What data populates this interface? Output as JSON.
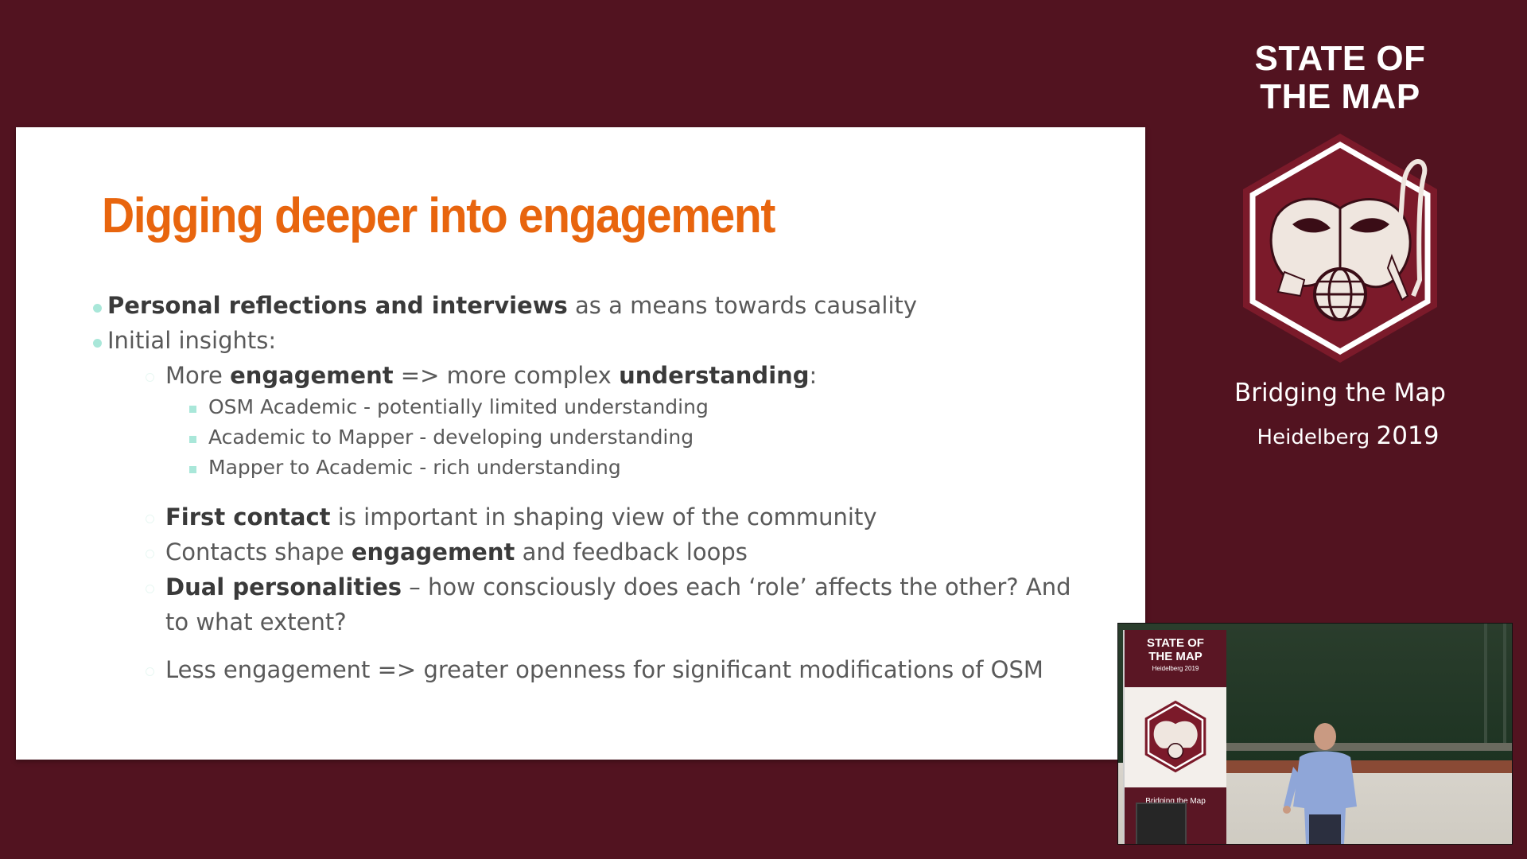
{
  "slide": {
    "title": "Digging deeper into engagement",
    "lines": [
      {
        "level": 1,
        "bold": "Personal reflections and interviews",
        "text": " as a means towards causality"
      },
      {
        "level": 1,
        "text": "Initial insights:"
      },
      {
        "level": 2,
        "pre": "More ",
        "b1": "engagement",
        "mid": " => more complex ",
        "b2": "understanding",
        "post": ":"
      },
      {
        "level": 3,
        "text": "OSM Academic - potentially limited understanding"
      },
      {
        "level": 3,
        "text": "Academic to Mapper - developing understanding"
      },
      {
        "level": 3,
        "text": "Mapper to Academic - rich understanding"
      },
      {
        "level": 2,
        "bold": "First contact",
        "text": " is important in shaping view of the community"
      },
      {
        "level": 2,
        "pre": "Contacts shape ",
        "bold": "engagement",
        "post": " and feedback loops"
      },
      {
        "level": 2,
        "bold": "Dual personalities",
        "text": " – how consciously does each ‘role’ affects the other? And",
        "cont": "to what extent?"
      },
      {
        "level": 2,
        "text": "Less engagement => greater openness for significant modifications of OSM"
      }
    ]
  },
  "brand": {
    "title_line1": "STATE OF",
    "title_line2": "THE MAP",
    "subtitle": "Bridging the Map",
    "place": "Heidelberg",
    "year": "2019",
    "logo_icon": "state-of-the-map-hexagon-logo"
  },
  "video": {
    "banner_title_line1": "STATE OF",
    "banner_title_line2": "THE MAP",
    "banner_place": "Heidelberg 2019",
    "banner_subtitle": "Bridging the Map"
  },
  "colors": {
    "background": "#521320",
    "title_orange": "#e8650e",
    "bullet_mint": "#a9e7d9",
    "body_text": "#595959",
    "logo_red": "#7b1a2a"
  }
}
